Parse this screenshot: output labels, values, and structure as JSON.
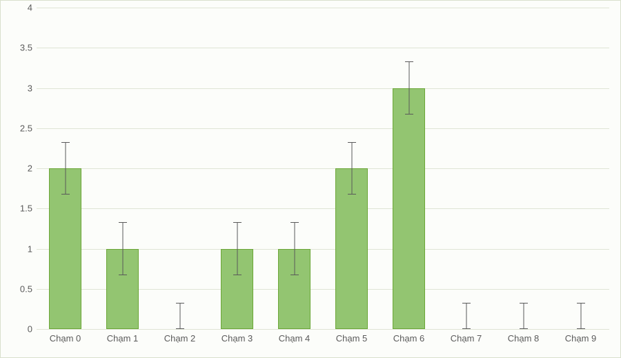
{
  "chart": {
    "type": "bar",
    "background_color": "#fcfdfa",
    "border_color": "#d9e0cc",
    "grid_color": "#dfe4d5",
    "tick_font_size": 13,
    "tick_color": "#5a5a5a",
    "bar_fill": "#93c571",
    "bar_border": "#6ba637",
    "errorbar_color": "#595959",
    "errorbar_cap_width": 12,
    "bar_width_ratio": 0.56,
    "ymin": 0,
    "ymax": 4,
    "ytick_step": 0.5,
    "yticks": [
      "0",
      "0.5",
      "1",
      "1.5",
      "2",
      "2.5",
      "3",
      "3.5",
      "4"
    ],
    "categories": [
      "Chạm 0",
      "Chạm 1",
      "Chạm 2",
      "Chạm 3",
      "Chạm 4",
      "Chạm 5",
      "Chạm 6",
      "Chạm 7",
      "Chạm 8",
      "Chạm 9"
    ],
    "values": [
      2,
      1,
      0,
      1,
      1,
      2,
      3,
      0,
      0,
      0
    ],
    "error": [
      0.33,
      0.33,
      0.33,
      0.33,
      0.33,
      0.33,
      0.33,
      0.33,
      0.33,
      0.33
    ]
  }
}
